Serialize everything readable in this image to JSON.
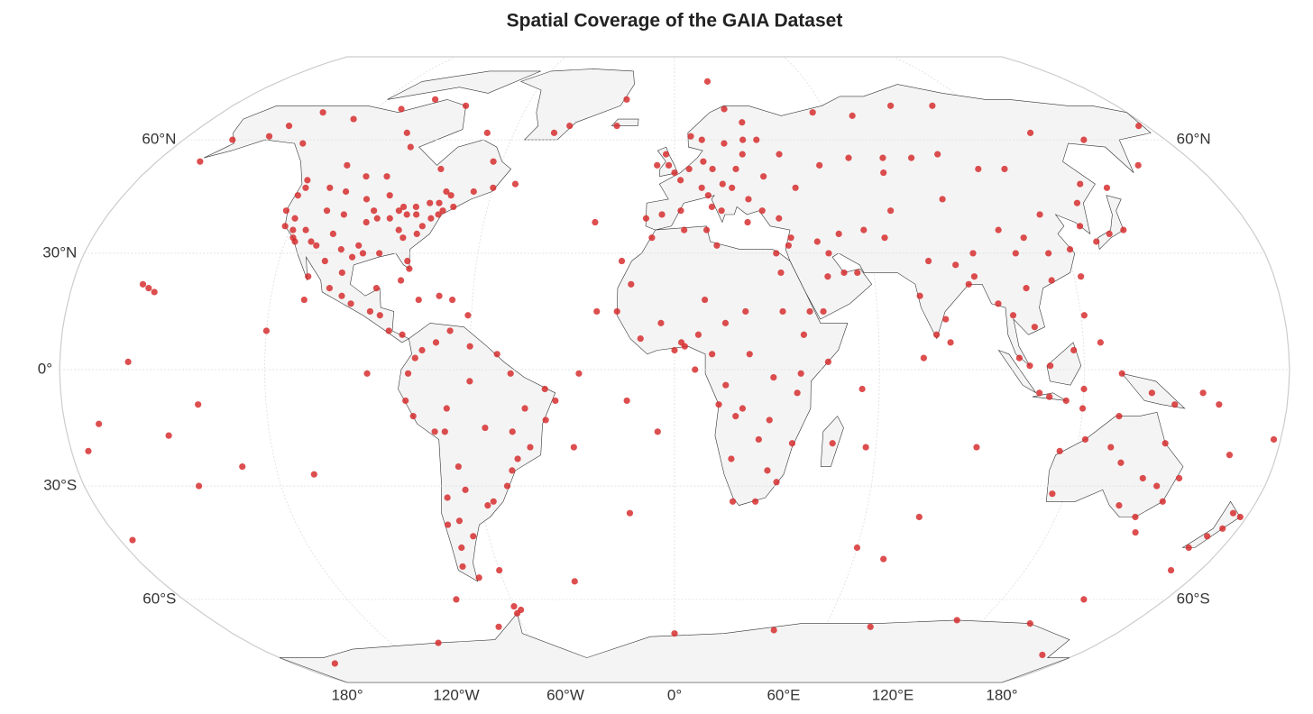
{
  "title": "Spatial Coverage of the GAIA Dataset",
  "map": {
    "projection": "robinson",
    "points_color": "#d62728",
    "lat_labels_left": [
      {
        "value": 60,
        "label": "60°N"
      },
      {
        "value": 30,
        "label": "30°N"
      },
      {
        "value": 0,
        "label": "0°"
      },
      {
        "value": -30,
        "label": "30°S"
      },
      {
        "value": -60,
        "label": "60°S"
      }
    ],
    "lat_labels_right": [
      {
        "value": 60,
        "label": "60°N"
      },
      {
        "value": -60,
        "label": "60°S"
      }
    ],
    "lon_labels": [
      {
        "value": -180,
        "label": "180°"
      },
      {
        "value": -120,
        "label": "120°W"
      },
      {
        "value": -60,
        "label": "60°W"
      },
      {
        "value": 0,
        "label": "0°"
      },
      {
        "value": 60,
        "label": "60°E"
      },
      {
        "value": 120,
        "label": "120°E"
      },
      {
        "value": 180,
        "label": "180°"
      }
    ],
    "points": [
      [
        -122,
        37
      ],
      [
        -118,
        34
      ],
      [
        -117,
        33
      ],
      [
        -112,
        33
      ],
      [
        -105,
        40
      ],
      [
        -97,
        32
      ],
      [
        -95,
        30
      ],
      [
        -90,
        30
      ],
      [
        -87,
        42
      ],
      [
        -84,
        34
      ],
      [
        -81,
        28
      ],
      [
        -80,
        26
      ],
      [
        -77,
        39
      ],
      [
        -74,
        41
      ],
      [
        -71,
        42
      ],
      [
        -83,
        42
      ],
      [
        -93,
        45
      ],
      [
        -90,
        39
      ],
      [
        -86,
        36
      ],
      [
        -80,
        35
      ],
      [
        -122,
        47
      ],
      [
        -123,
        45
      ],
      [
        -120,
        39
      ],
      [
        -115,
        36
      ],
      [
        -111,
        41
      ],
      [
        -106,
        35
      ],
      [
        -100,
        44
      ],
      [
        -97,
        38
      ],
      [
        -96,
        41
      ],
      [
        -94,
        39
      ],
      [
        -88,
        41
      ],
      [
        -85,
        40
      ],
      [
        -82,
        40
      ],
      [
        -79,
        43
      ],
      [
        -76,
        43
      ],
      [
        -73,
        45
      ],
      [
        -79,
        37
      ],
      [
        -75,
        40
      ],
      [
        -98,
        29
      ],
      [
        -102,
        31
      ],
      [
        -110,
        32
      ],
      [
        -119,
        36
      ],
      [
        -124,
        41
      ],
      [
        -114,
        47
      ],
      [
        -108,
        46
      ],
      [
        -104,
        50
      ],
      [
        -97,
        50
      ],
      [
        -113,
        53
      ],
      [
        -123,
        49
      ],
      [
        -135,
        59
      ],
      [
        -150,
        61
      ],
      [
        -147,
        64
      ],
      [
        -162,
        60
      ],
      [
        -165,
        54
      ],
      [
        -140,
        68
      ],
      [
        -100,
        62
      ],
      [
        -95,
        58
      ],
      [
        -80,
        52
      ],
      [
        -75,
        46
      ],
      [
        -66,
        46
      ],
      [
        -60,
        47
      ],
      [
        -63,
        54
      ],
      [
        -53,
        48
      ],
      [
        -70,
        62
      ],
      [
        -85,
        70
      ],
      [
        -100,
        72
      ],
      [
        -110,
        69
      ],
      [
        -125,
        66
      ],
      [
        -155,
        20
      ],
      [
        -157,
        21
      ],
      [
        -159,
        22
      ],
      [
        -99,
        19
      ],
      [
        -103,
        21
      ],
      [
        -100,
        25
      ],
      [
        -106,
        28
      ],
      [
        -110,
        24
      ],
      [
        -96,
        17
      ],
      [
        -90,
        15
      ],
      [
        -87,
        14
      ],
      [
        -84,
        10
      ],
      [
        -80,
        9
      ],
      [
        -89,
        21
      ],
      [
        -82,
        23
      ],
      [
        -76,
        18
      ],
      [
        -70,
        19
      ],
      [
        -66,
        18
      ],
      [
        -61,
        14
      ],
      [
        -74,
        5
      ],
      [
        -76,
        3
      ],
      [
        -78,
        -1
      ],
      [
        -79,
        -8
      ],
      [
        -77,
        -12
      ],
      [
        -71,
        -16
      ],
      [
        -68,
        -16
      ],
      [
        -66,
        10
      ],
      [
        -70,
        7
      ],
      [
        -60,
        6
      ],
      [
        -52,
        4
      ],
      [
        -48,
        -1
      ],
      [
        -60,
        -3
      ],
      [
        -67,
        -10
      ],
      [
        -38,
        -5
      ],
      [
        -35,
        -8
      ],
      [
        -38,
        -13
      ],
      [
        -43,
        -20
      ],
      [
        -47,
        -23
      ],
      [
        -49,
        -26
      ],
      [
        -51,
        -30
      ],
      [
        -56,
        -34
      ],
      [
        -58,
        -35
      ],
      [
        -64,
        -31
      ],
      [
        -65,
        -25
      ],
      [
        -70,
        -33
      ],
      [
        -72,
        -40
      ],
      [
        -68,
        -39
      ],
      [
        -65,
        -43
      ],
      [
        -70,
        -46
      ],
      [
        -72,
        -51
      ],
      [
        -68,
        -54
      ],
      [
        -56,
        -15
      ],
      [
        -48,
        -16
      ],
      [
        -44,
        -10
      ],
      [
        -60,
        -52
      ],
      [
        -90,
        -1
      ],
      [
        -109,
        -27
      ],
      [
        -9,
        39
      ],
      [
        -4,
        40
      ],
      [
        2,
        41
      ],
      [
        2,
        49
      ],
      [
        0,
        51
      ],
      [
        -2,
        53
      ],
      [
        -6,
        53
      ],
      [
        -3,
        56
      ],
      [
        5,
        52
      ],
      [
        10,
        54
      ],
      [
        13,
        52
      ],
      [
        9,
        47
      ],
      [
        11,
        45
      ],
      [
        12,
        42
      ],
      [
        15,
        41
      ],
      [
        16,
        48
      ],
      [
        19,
        47
      ],
      [
        21,
        52
      ],
      [
        24,
        56
      ],
      [
        30,
        50
      ],
      [
        37,
        56
      ],
      [
        30,
        60
      ],
      [
        25,
        60
      ],
      [
        18,
        59
      ],
      [
        10,
        60
      ],
      [
        6,
        61
      ],
      [
        26,
        65
      ],
      [
        20,
        69
      ],
      [
        24,
        44
      ],
      [
        23,
        38
      ],
      [
        28,
        41
      ],
      [
        33,
        39
      ],
      [
        40,
        47
      ],
      [
        50,
        53
      ],
      [
        -22,
        64
      ],
      [
        15,
        78
      ],
      [
        -20,
        72
      ],
      [
        -40,
        64
      ],
      [
        -45,
        62
      ],
      [
        -7,
        34
      ],
      [
        3,
        36
      ],
      [
        10,
        36
      ],
      [
        13,
        32
      ],
      [
        31,
        30
      ],
      [
        32,
        25
      ],
      [
        -17,
        15
      ],
      [
        -4,
        12
      ],
      [
        2,
        7
      ],
      [
        0,
        5
      ],
      [
        7,
        9
      ],
      [
        3,
        6
      ],
      [
        11,
        4
      ],
      [
        15,
        12
      ],
      [
        21,
        15
      ],
      [
        32,
        15
      ],
      [
        38,
        9
      ],
      [
        45,
        2
      ],
      [
        37,
        -1
      ],
      [
        36,
        -6
      ],
      [
        29,
        -2
      ],
      [
        28,
        -13
      ],
      [
        25,
        -18
      ],
      [
        18,
        -12
      ],
      [
        13,
        -9
      ],
      [
        15,
        -4
      ],
      [
        28,
        -26
      ],
      [
        31,
        -29
      ],
      [
        18,
        -34
      ],
      [
        25,
        -34
      ],
      [
        17,
        -23
      ],
      [
        35,
        -19
      ],
      [
        47,
        -19
      ],
      [
        57,
        -20
      ],
      [
        -16,
        28
      ],
      [
        -23,
        15
      ],
      [
        -14,
        -8
      ],
      [
        6,
        0
      ],
      [
        20,
        -10
      ],
      [
        40,
        15
      ],
      [
        -10,
        8
      ],
      [
        22,
        4
      ],
      [
        9,
        18
      ],
      [
        -13,
        22
      ],
      [
        35,
        32
      ],
      [
        36,
        34
      ],
      [
        44,
        33
      ],
      [
        47,
        30
      ],
      [
        51,
        25
      ],
      [
        55,
        25
      ],
      [
        46,
        24
      ],
      [
        44,
        15
      ],
      [
        51,
        35
      ],
      [
        59,
        36
      ],
      [
        65,
        34
      ],
      [
        69,
        41
      ],
      [
        71,
        51
      ],
      [
        61,
        55
      ],
      [
        73,
        55
      ],
      [
        83,
        55
      ],
      [
        93,
        56
      ],
      [
        104,
        52
      ],
      [
        113,
        52
      ],
      [
        130,
        43
      ],
      [
        135,
        48
      ],
      [
        143,
        47
      ],
      [
        140,
        36
      ],
      [
        135,
        35
      ],
      [
        130,
        33
      ],
      [
        127,
        37
      ],
      [
        121,
        31
      ],
      [
        116,
        40
      ],
      [
        113,
        23
      ],
      [
        114,
        30
      ],
      [
        104,
        30
      ],
      [
        108,
        34
      ],
      [
        101,
        36
      ],
      [
        87,
        44
      ],
      [
        91,
        30
      ],
      [
        77,
        28
      ],
      [
        73,
        19
      ],
      [
        80,
        13
      ],
      [
        77,
        9
      ],
      [
        88,
        22
      ],
      [
        85,
        27
      ],
      [
        81,
        7
      ],
      [
        90,
        24
      ],
      [
        96,
        17
      ],
      [
        100,
        14
      ],
      [
        105,
        21
      ],
      [
        106,
        11
      ],
      [
        101,
        3
      ],
      [
        104,
        1
      ],
      [
        110,
        -7
      ],
      [
        107,
        -6
      ],
      [
        115,
        -8
      ],
      [
        120,
        -5
      ],
      [
        125,
        7
      ],
      [
        121,
        14
      ],
      [
        122,
        24
      ],
      [
        110,
        1
      ],
      [
        117,
        5
      ],
      [
        131,
        -1
      ],
      [
        140,
        -6
      ],
      [
        147,
        -9
      ],
      [
        160,
        -9
      ],
      [
        155,
        -6
      ],
      [
        166,
        -22
      ],
      [
        178,
        -18
      ],
      [
        120,
        -10
      ],
      [
        160,
        53
      ],
      [
        177,
        64
      ],
      [
        150,
        60
      ],
      [
        133,
        62
      ],
      [
        105,
        70
      ],
      [
        88,
        70
      ],
      [
        70,
        67
      ],
      [
        55,
        68
      ],
      [
        73,
        3
      ],
      [
        55,
        -5
      ],
      [
        151,
        -34
      ],
      [
        145,
        -38
      ],
      [
        138,
        -35
      ],
      [
        116,
        -32
      ],
      [
        115,
        -21
      ],
      [
        131,
        -12
      ],
      [
        146,
        -19
      ],
      [
        153,
        -28
      ],
      [
        148,
        -42
      ],
      [
        134,
        -24
      ],
      [
        122,
        -18
      ],
      [
        142,
        -28
      ],
      [
        175,
        -37
      ],
      [
        175,
        -41
      ],
      [
        172,
        -43
      ],
      [
        169,
        -46
      ],
      [
        178,
        -38
      ],
      [
        147,
        -30
      ],
      [
        130,
        -20
      ],
      [
        -170,
        -14
      ],
      [
        -150,
        -17
      ],
      [
        -140,
        -9
      ],
      [
        -160,
        2
      ],
      [
        -175,
        -21
      ],
      [
        -130,
        -25
      ],
      [
        -145,
        -30
      ],
      [
        -176,
        -44
      ],
      [
        -120,
        10
      ],
      [
        -110,
        18
      ],
      [
        -30,
        -20
      ],
      [
        -14,
        -37
      ],
      [
        -5,
        -16
      ],
      [
        -25,
        38
      ],
      [
        -28,
        -1
      ],
      [
        60,
        -46
      ],
      [
        70,
        -49
      ],
      [
        77,
        -38
      ],
      [
        90,
        -20
      ],
      [
        -60,
        -62
      ],
      [
        -58,
        -63
      ],
      [
        -35,
        -55
      ],
      [
        -70,
        -68
      ],
      [
        -100,
        -73
      ],
      [
        0,
        -70
      ],
      [
        40,
        -69
      ],
      [
        78,
        -68
      ],
      [
        110,
        -66
      ],
      [
        140,
        -67
      ],
      [
        165,
        -77
      ],
      [
        -160,
        -80
      ],
      [
        -60,
        -64
      ],
      [
        170,
        -52
      ],
      [
        150,
        -60
      ],
      [
        -80,
        -60
      ]
    ]
  }
}
